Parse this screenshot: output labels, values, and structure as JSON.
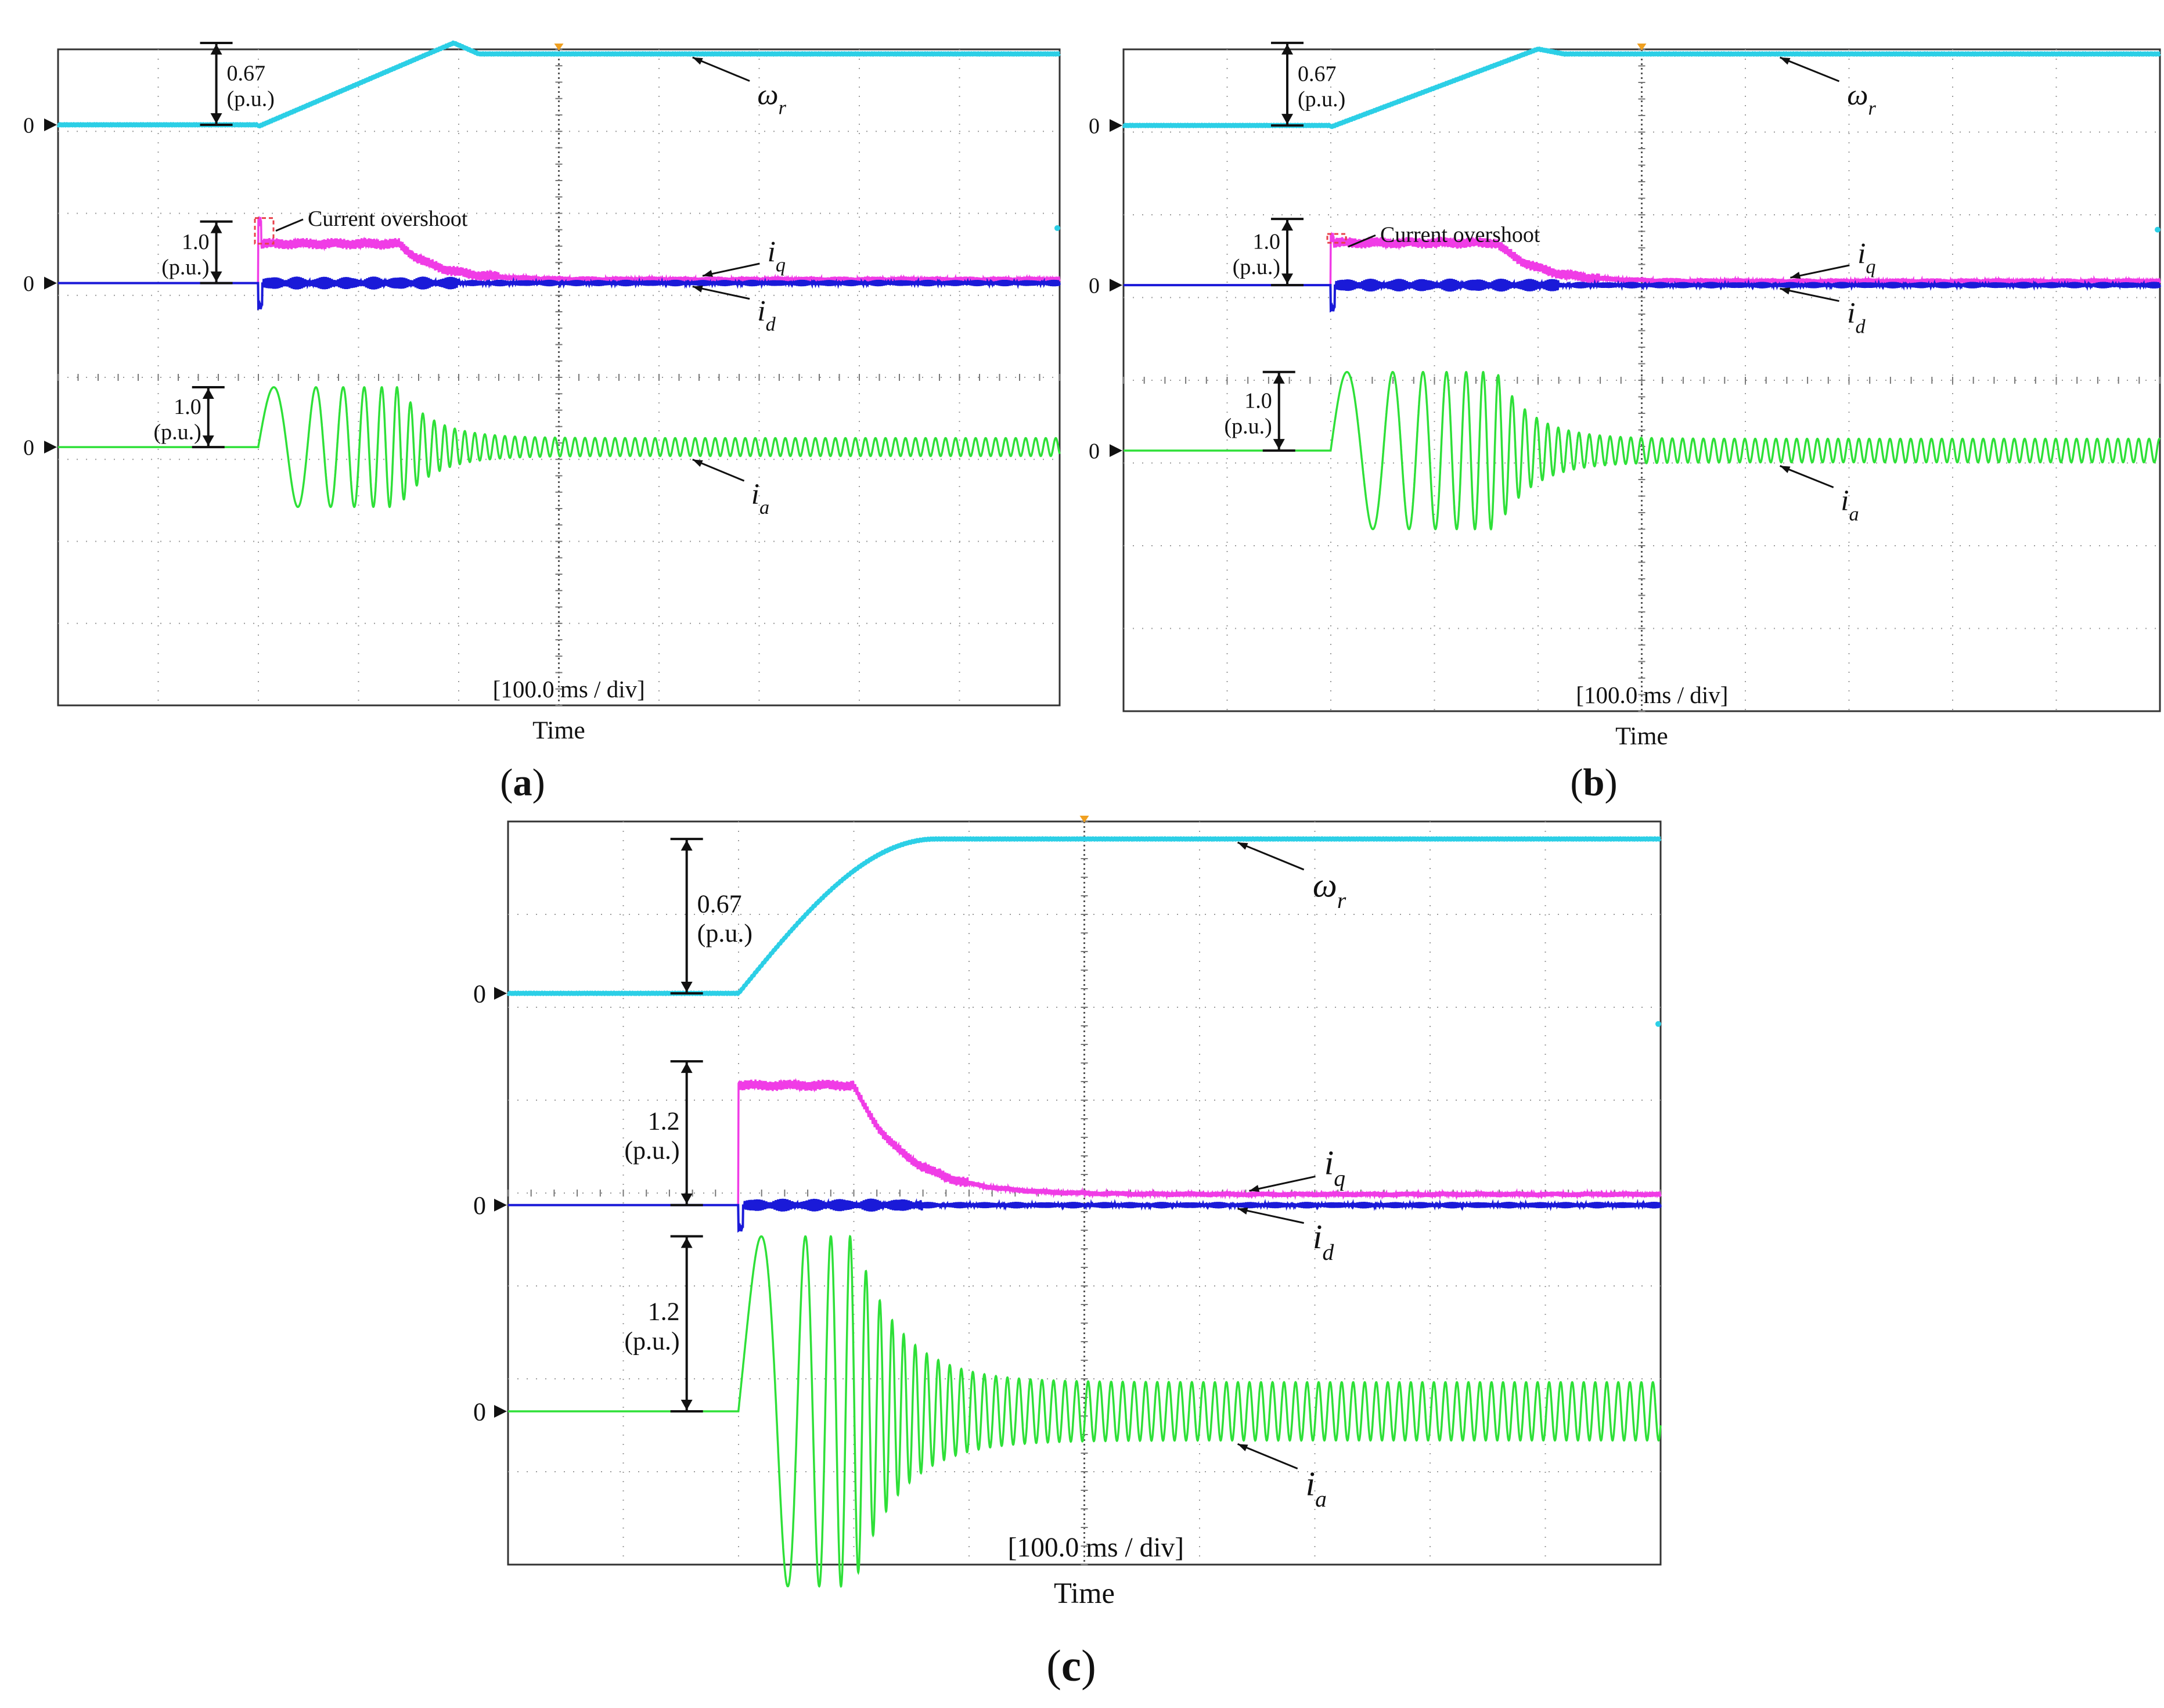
{
  "figure": {
    "panel_captions": [
      "a",
      "b",
      "c"
    ]
  },
  "colors": {
    "speed": "#2ccfe6",
    "iq": "#f03ce6",
    "id": "#1a1ad8",
    "ia": "#2ee038",
    "overshoot_box": "#e8404a",
    "grid": "#9a9a9a",
    "trigger": "#f0a020",
    "axis": "#333333",
    "text": "#111111"
  },
  "chart_data": [
    {
      "panel": "a",
      "type": "line",
      "title": "",
      "xlabel": "Time",
      "ylabel": "",
      "timebase_label": "[100.0 ms  / div]",
      "timebase_ms_per_div": 100,
      "x_divisions": 10,
      "y_divisions": 8,
      "grid": true,
      "x_unit": "ms",
      "xlim": [
        0,
        1000
      ],
      "overshoot_label": "Current overshoot",
      "has_overshoot": true,
      "zero_marker": "0",
      "channels": [
        {
          "name": "speed",
          "symbol": "ω",
          "subscript": "r",
          "zero_div": 0.92,
          "scale_value": "0.67",
          "scale_unit": "(p.u.)",
          "scale_span": 0.67,
          "scale_div_per_pu": 1.49
        },
        {
          "name": "iq",
          "symbol": "i",
          "subscript": "q",
          "zero_div": 2.85,
          "scale_value": "1.0",
          "scale_unit": "(p.u.)",
          "scale_span": 1.0,
          "scale_div_per_pu": 0.75
        },
        {
          "name": "id",
          "symbol": "i",
          "subscript": "d",
          "zero_div": 2.85
        },
        {
          "name": "ia",
          "symbol": "i",
          "subscript": "a",
          "zero_div": 4.85,
          "scale_value": "1.0",
          "scale_unit": "(p.u.)",
          "scale_span": 1.0,
          "scale_div_per_pu": 0.73
        }
      ],
      "waveform": {
        "start_ms": 200,
        "plateau_end_ms": 340,
        "decay_ms": 60,
        "speed_final_pu": 0.58,
        "speed_peak_pu": 0.67,
        "speed_peak_ms": 395,
        "iq_plateau_pu": 0.64,
        "iq_final_pu": 0.06,
        "iq_spike_pu": 1.0,
        "ia_peak_pu": 1.0,
        "ia_final_pu": 0.15,
        "ia_freq_start_hz": 15,
        "ia_freq_end_hz": 100,
        "ia_first_dip_pu": 1.35
      }
    },
    {
      "panel": "b",
      "type": "line",
      "title": "",
      "xlabel": "Time",
      "ylabel": "",
      "timebase_label": "[100.0 ms  / div]",
      "timebase_ms_per_div": 100,
      "x_divisions": 10,
      "y_divisions": 8,
      "grid": true,
      "x_unit": "ms",
      "xlim": [
        0,
        1000
      ],
      "overshoot_label": "Current overshoot",
      "has_overshoot": true,
      "zero_marker": "0",
      "channels": [
        {
          "name": "speed",
          "symbol": "ω",
          "subscript": "r",
          "zero_div": 0.92,
          "scale_value": "0.67",
          "scale_unit": "(p.u.)",
          "scale_span": 0.67,
          "scale_div_per_pu": 1.49
        },
        {
          "name": "iq",
          "symbol": "i",
          "subscript": "q",
          "zero_div": 2.85,
          "scale_value": "1.0",
          "scale_unit": "(p.u.)",
          "scale_span": 1.0,
          "scale_div_per_pu": 0.8
        },
        {
          "name": "id",
          "symbol": "i",
          "subscript": "d",
          "zero_div": 2.85
        },
        {
          "name": "ia",
          "symbol": "i",
          "subscript": "a",
          "zero_div": 4.85,
          "scale_value": "1.0",
          "scale_unit": "(p.u.)",
          "scale_span": 1.0,
          "scale_div_per_pu": 0.95
        }
      ],
      "waveform": {
        "start_ms": 200,
        "plateau_end_ms": 360,
        "decay_ms": 60,
        "speed_final_pu": 0.58,
        "speed_peak_pu": 0.62,
        "speed_peak_ms": 400,
        "iq_plateau_pu": 0.64,
        "iq_final_pu": 0.06,
        "iq_spike_pu": 0.72,
        "ia_peak_pu": 1.0,
        "ia_final_pu": 0.15,
        "ia_freq_start_hz": 15,
        "ia_freq_end_hz": 100,
        "ia_first_dip_pu": 1.0
      }
    },
    {
      "panel": "c",
      "type": "line",
      "title": "",
      "xlabel": "Time",
      "ylabel": "",
      "timebase_label": "[100.0 ms  / div]",
      "timebase_ms_per_div": 100,
      "x_divisions": 10,
      "y_divisions": 8,
      "grid": true,
      "x_unit": "ms",
      "xlim": [
        0,
        1000
      ],
      "overshoot_label": "",
      "has_overshoot": false,
      "zero_marker": "0",
      "channels": [
        {
          "name": "speed",
          "symbol": "ω",
          "subscript": "r",
          "zero_div": 1.85,
          "scale_value": "0.67",
          "scale_unit": "(p.u.)",
          "scale_span": 0.67,
          "scale_div_per_pu": 2.48
        },
        {
          "name": "iq",
          "symbol": "i",
          "subscript": "q",
          "zero_div": 4.13,
          "scale_value": "1.2",
          "scale_unit": "(p.u.)",
          "scale_span": 1.2,
          "scale_div_per_pu": 1.29
        },
        {
          "name": "id",
          "symbol": "i",
          "subscript": "d",
          "zero_div": 4.13
        },
        {
          "name": "ia",
          "symbol": "i",
          "subscript": "a",
          "zero_div": 6.35,
          "scale_value": "1.2",
          "scale_unit": "(p.u.)",
          "scale_span": 1.2,
          "scale_div_per_pu": 1.57
        }
      ],
      "waveform": {
        "start_ms": 200,
        "plateau_end_ms": 300,
        "decay_ms": 70,
        "speed_final_pu": 0.67,
        "speed_peak_pu": 0.67,
        "speed_peak_ms": 370,
        "iq_plateau_pu": 1.0,
        "iq_final_pu": 0.09,
        "iq_spike_pu": 1.0,
        "ia_peak_pu": 1.2,
        "ia_final_pu": 0.2,
        "ia_freq_start_hz": 10,
        "ia_freq_end_hz": 100,
        "ia_first_dip_pu": 1.2
      }
    }
  ]
}
